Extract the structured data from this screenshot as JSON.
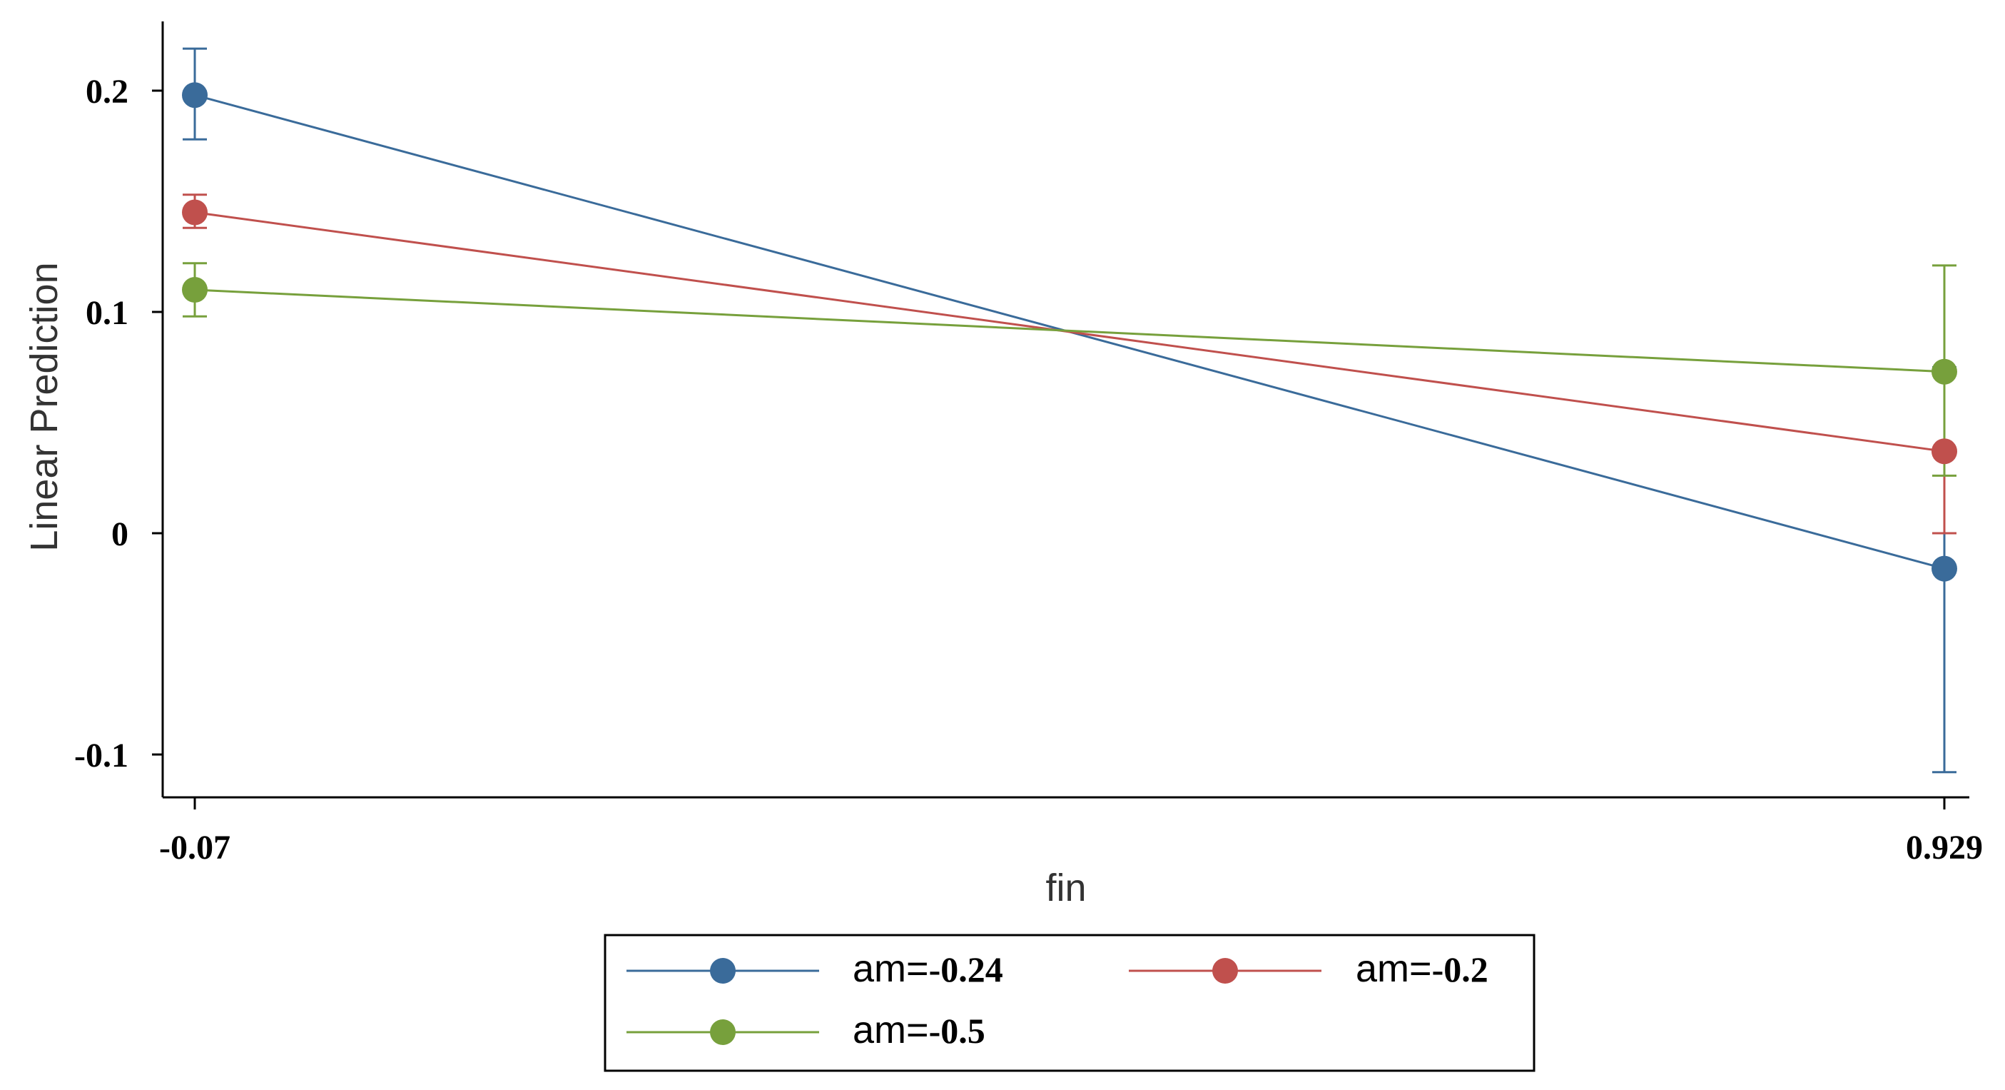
{
  "chart_data": {
    "type": "line",
    "title": "",
    "xlabel": "fin",
    "ylabel": "Linear Prediction",
    "x": [
      -0.07,
      0.929
    ],
    "x_tick_labels": [
      "-0.07",
      "0.929"
    ],
    "y_ticks": [
      -0.1,
      0,
      0.1,
      0.2
    ],
    "y_tick_labels": [
      "-0.1",
      "0",
      "0.1",
      "0.2"
    ],
    "xlim": [
      -0.09,
      0.95
    ],
    "ylim": [
      -0.12,
      0.23
    ],
    "grid": false,
    "legend_position": "bottom",
    "error_bars": true,
    "series": [
      {
        "name": "am=-0.24",
        "name_prefix": "am=",
        "name_value": "-0.24",
        "color": "#3a6b9a",
        "values": [
          0.198,
          -0.016
        ],
        "ci_low": [
          0.178,
          -0.108
        ],
        "ci_high": [
          0.219,
          0.075
        ]
      },
      {
        "name": "am=-0.2",
        "name_prefix": "am=",
        "name_value": "-0.2",
        "color": "#c0504d",
        "values": [
          0.145,
          0.037
        ],
        "ci_low": [
          0.138,
          0.0
        ],
        "ci_high": [
          0.153,
          0.074
        ]
      },
      {
        "name": "am=-0.5",
        "name_prefix": "am=",
        "name_value": "-0.5",
        "color": "#77a03c",
        "values": [
          0.11,
          0.073
        ],
        "ci_low": [
          0.098,
          0.026
        ],
        "ci_high": [
          0.122,
          0.121
        ]
      }
    ]
  }
}
